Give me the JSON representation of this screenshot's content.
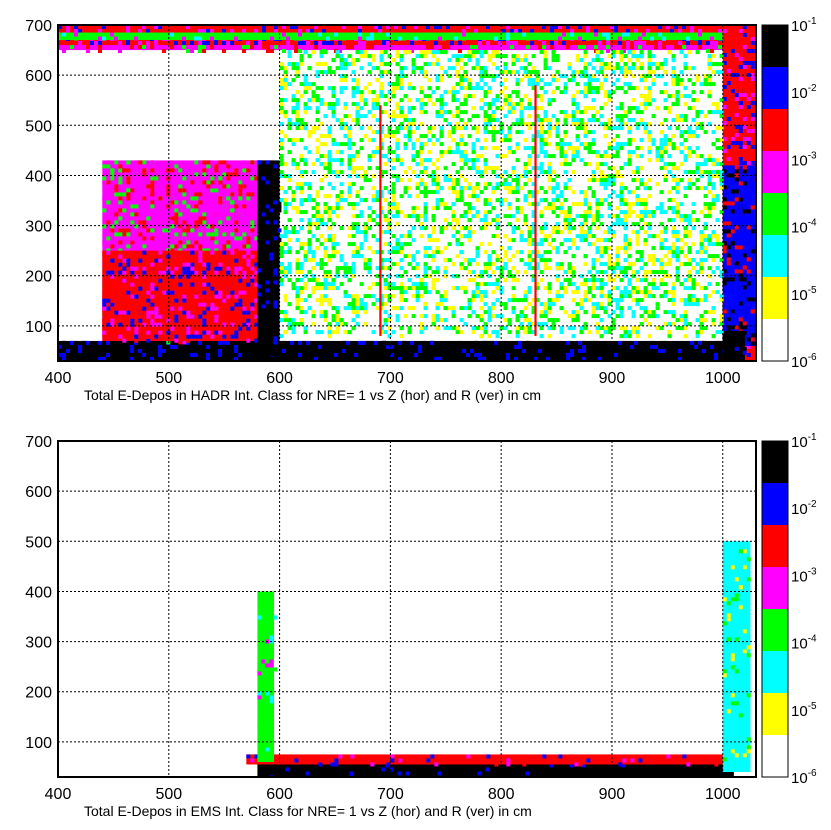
{
  "colors": {
    "scale": [
      "#ffffff",
      "#ffff00",
      "#00ffff",
      "#00ff00",
      "#ff00ff",
      "#ff0000",
      "#0000ff",
      "#000000"
    ]
  },
  "chart_data": [
    {
      "type": "heatmap",
      "title": "",
      "xlabel": "Total E-Depos  in HADR  Int. Class for NRE= 1 vs Z (hor) and R (ver) in cm",
      "ylabel": "",
      "xlim": [
        400,
        1030
      ],
      "ylim": [
        30,
        700
      ],
      "xticks": [
        "400",
        "500",
        "600",
        "700",
        "800",
        "900",
        "1000"
      ],
      "yticks": [
        "100",
        "200",
        "300",
        "400",
        "500",
        "600",
        "700"
      ],
      "grid": true,
      "color_scale": {
        "type": "log",
        "min": 1e-06,
        "max": 0.1,
        "labels": [
          "10^-6",
          "10^-5",
          "10^-4",
          "10^-3",
          "10^-2",
          "10^-1"
        ]
      },
      "regions": [
        {
          "x": [
            400,
            1030
          ],
          "y": [
            30,
            70
          ],
          "level": 7
        },
        {
          "x": [
            400,
            1030
          ],
          "y": [
            650,
            700
          ],
          "level": 4
        },
        {
          "x": [
            400,
            1030
          ],
          "y": [
            660,
            700
          ],
          "level": 5
        },
        {
          "x": [
            400,
            1030
          ],
          "y": [
            670,
            685
          ],
          "level": 3
        },
        {
          "x": [
            1000,
            1030
          ],
          "y": [
            30,
            700
          ],
          "level": 5
        },
        {
          "x": [
            1000,
            1030
          ],
          "y": [
            60,
            420
          ],
          "level": 6
        },
        {
          "x": [
            1000,
            1020
          ],
          "y": [
            30,
            90
          ],
          "level": 7
        },
        {
          "x": [
            440,
            595
          ],
          "y": [
            70,
            430
          ],
          "level": 4
        },
        {
          "x": [
            440,
            595
          ],
          "y": [
            70,
            250
          ],
          "level": 5
        },
        {
          "x": [
            580,
            600
          ],
          "y": [
            40,
            430
          ],
          "level": 7
        },
        {
          "x": [
            600,
            1000
          ],
          "y": [
            80,
            650
          ],
          "level": 2
        },
        {
          "x": [
            690,
            692
          ],
          "y": [
            80,
            540
          ],
          "level": 5
        },
        {
          "x": [
            830,
            832
          ],
          "y": [
            80,
            580
          ],
          "level": 5
        }
      ]
    },
    {
      "type": "heatmap",
      "title": "",
      "xlabel": "Total E-Depos  in EMS  Int. Class for NRE= 1 vs Z (hor) and R (ver) in cm",
      "ylabel": "",
      "xlim": [
        400,
        1030
      ],
      "ylim": [
        30,
        700
      ],
      "xticks": [
        "400",
        "500",
        "600",
        "700",
        "800",
        "900",
        "1000"
      ],
      "yticks": [
        "100",
        "200",
        "300",
        "400",
        "500",
        "600",
        "700"
      ],
      "grid": true,
      "color_scale": {
        "type": "log",
        "min": 1e-06,
        "max": 0.1,
        "labels": [
          "10^-6",
          "10^-5",
          "10^-4",
          "10^-3",
          "10^-2",
          "10^-1"
        ]
      },
      "regions": [
        {
          "x": [
            580,
            1010
          ],
          "y": [
            30,
            65
          ],
          "level": 7
        },
        {
          "x": [
            570,
            1010
          ],
          "y": [
            55,
            75
          ],
          "level": 5
        },
        {
          "x": [
            1000,
            1025
          ],
          "y": [
            40,
            500
          ],
          "level": 2
        },
        {
          "x": [
            580,
            595
          ],
          "y": [
            60,
            400
          ],
          "level": 3
        }
      ]
    }
  ]
}
